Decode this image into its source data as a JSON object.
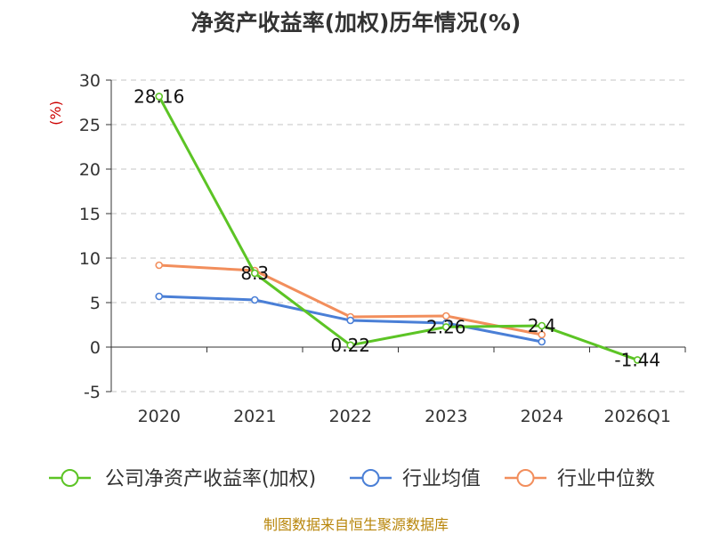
{
  "chart_data": {
    "type": "line",
    "title": "净资产收益率(加权)历年情况(%)",
    "ylabel": "(%)",
    "categories": [
      "2020",
      "2021",
      "2022",
      "2023",
      "2024",
      "2026Q1"
    ],
    "ylim": [
      -5,
      30
    ],
    "yticks": [
      -5,
      0,
      5,
      10,
      15,
      20,
      25,
      30
    ],
    "grid": true,
    "legend_position": "bottom",
    "series": [
      {
        "name": "公司净资产收益率(加权)",
        "color": "#5cc425",
        "values": [
          28.16,
          8.3,
          0.22,
          2.26,
          2.4,
          -1.44
        ],
        "labels": [
          "28.16",
          "8.3",
          "0.22",
          "2.26",
          "2.4",
          "-1.44"
        ]
      },
      {
        "name": "行业均值",
        "color": "#4a7fd6",
        "values": [
          5.7,
          5.3,
          3.0,
          2.7,
          0.6,
          null
        ]
      },
      {
        "name": "行业中位数",
        "color": "#f28e5c",
        "values": [
          9.2,
          8.6,
          3.4,
          3.5,
          1.4,
          null
        ]
      }
    ]
  },
  "source": "制图数据来自恒生聚源数据库"
}
